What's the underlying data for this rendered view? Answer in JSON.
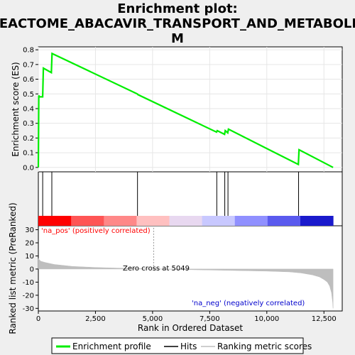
{
  "chart_data": {
    "type": "line",
    "title_lines": [
      "Enrichment plot:",
      "REACTOME_ABACAVIR_TRANSPORT_AND_METABOLIS",
      "M"
    ],
    "top_panel": {
      "ylabel": "Enrichment score (ES)",
      "ylim": [
        -0.03,
        0.82
      ],
      "yticks": [
        "0.0",
        "0.1",
        "0.2",
        "0.3",
        "0.4",
        "0.5",
        "0.6",
        "0.7",
        "0.8"
      ],
      "ytick_values": [
        0.0,
        0.1,
        0.2,
        0.3,
        0.4,
        0.5,
        0.6,
        0.7,
        0.8
      ],
      "series": [
        {
          "name": "Enrichment profile",
          "color": "#00ee00",
          "x": [
            0,
            20,
            50,
            190,
            220,
            570,
            600,
            4330,
            4360,
            7800,
            7830,
            8150,
            8180,
            8290,
            8320,
            11380,
            11410,
            12900
          ],
          "y": [
            0.0,
            0.49,
            0.48,
            0.48,
            0.675,
            0.645,
            0.775,
            0.5,
            0.495,
            0.24,
            0.25,
            0.225,
            0.25,
            0.235,
            0.26,
            0.02,
            0.12,
            0.0
          ]
        }
      ]
    },
    "hits_panel": {
      "hit_positions": [
        190,
        590,
        4340,
        7810,
        8160,
        8300,
        11390
      ],
      "hit_color": "#000000",
      "gradient_colors": [
        "#ff0000",
        "#ff5555",
        "#ff8888",
        "#ffc0c0",
        "#e8d8f0",
        "#c8c8ff",
        "#9090ff",
        "#5a5aee",
        "#1a1acc"
      ]
    },
    "bottom_panel": {
      "ylabel": "Ranked list metric (PreRanked)",
      "ylim": [
        -32,
        33
      ],
      "yticks": [
        "30",
        "20",
        "10",
        "0",
        "-10",
        "-20",
        "-30"
      ],
      "ytick_values": [
        30,
        20,
        10,
        0,
        -10,
        -20,
        -30
      ],
      "metric_x": [
        0,
        100,
        300,
        700,
        1500,
        2500,
        3500,
        4500,
        5049,
        6000,
        8000,
        10000,
        11000,
        11500,
        12000,
        12300,
        12500,
        12650,
        12750,
        12830,
        12880,
        12900
      ],
      "metric_y": [
        8,
        6,
        5,
        3.5,
        2,
        1.2,
        0.7,
        0.3,
        0,
        -0.3,
        -0.9,
        -1.6,
        -2.2,
        -3,
        -4.5,
        -6,
        -8,
        -10,
        -13,
        -18,
        -25,
        -30
      ],
      "fill_color": "#bebebe",
      "pos_label": "'na_pos' (positively correlated)",
      "neg_label": "'na_neg' (negatively correlated)",
      "zero_cross_label": "Zero cross at 5049",
      "zero_cross": 5049
    },
    "xlabel": "Rank in Ordered Dataset",
    "xlim": [
      0,
      13300
    ],
    "xticks": [
      "0",
      "2,500",
      "5,000",
      "7,500",
      "10,000",
      "12,500"
    ],
    "xtick_values": [
      0,
      2500,
      5000,
      7500,
      10000,
      12500
    ],
    "legend": {
      "placement": "bottom",
      "items": [
        {
          "label": "Enrichment profile",
          "color": "#00ee00"
        },
        {
          "label": "Hits",
          "color": "#000000"
        },
        {
          "label": "Ranking metric scores",
          "color": "#bebebe"
        }
      ]
    }
  }
}
